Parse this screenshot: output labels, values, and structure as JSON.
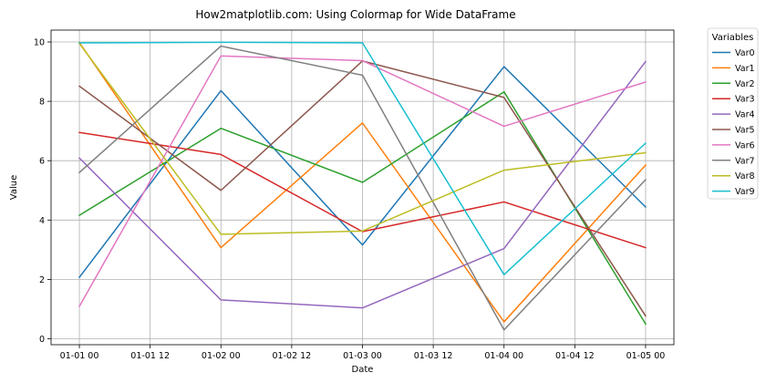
{
  "chart_data": {
    "type": "line",
    "title": "How2matplotlib.com: Using Colormap for Wide DataFrame",
    "xlabel": "Date",
    "ylabel": "Value",
    "x": [
      "01-01 00",
      "01-02 00",
      "01-03 00",
      "01-04 00",
      "01-05 00"
    ],
    "x_hours": [
      0,
      24,
      48,
      72,
      96
    ],
    "xticks": [
      "01-01 00",
      "01-01 12",
      "01-02 00",
      "01-02 12",
      "01-03 00",
      "01-03 12",
      "01-04 00",
      "01-04 12",
      "01-05 00"
    ],
    "xlim_hours": [
      -4.8,
      100.8
    ],
    "ylim": [
      -0.2,
      10.4
    ],
    "yticks": [
      0,
      2,
      4,
      6,
      8,
      10
    ],
    "grid": true,
    "legend": {
      "title": "Variables",
      "placement": "outside-right"
    },
    "series": [
      {
        "name": "Var0",
        "color": "#1f77b4",
        "values": [
          2.07,
          8.36,
          3.16,
          9.17,
          4.44
        ]
      },
      {
        "name": "Var1",
        "color": "#ff7f0e",
        "values": [
          9.98,
          3.07,
          7.27,
          0.57,
          5.85
        ]
      },
      {
        "name": "Var2",
        "color": "#2ca02c",
        "values": [
          4.16,
          7.09,
          5.27,
          8.32,
          0.5
        ]
      },
      {
        "name": "Var3",
        "color": "#d62728",
        "values": [
          6.95,
          6.21,
          3.61,
          4.61,
          3.07
        ]
      },
      {
        "name": "Var4",
        "color": "#9467bd",
        "values": [
          6.09,
          1.31,
          1.04,
          3.04,
          9.34
        ]
      },
      {
        "name": "Var5",
        "color": "#8c564b",
        "values": [
          8.51,
          5.0,
          9.36,
          8.13,
          0.77
        ]
      },
      {
        "name": "Var6",
        "color": "#e377c2",
        "values": [
          1.09,
          9.53,
          9.37,
          7.16,
          8.65
        ]
      },
      {
        "name": "Var7",
        "color": "#7f7f7f",
        "values": [
          5.6,
          9.86,
          8.88,
          0.3,
          5.36
        ]
      },
      {
        "name": "Var8",
        "color": "#bcbd22",
        "values": [
          9.95,
          3.52,
          3.63,
          5.68,
          6.27
        ]
      },
      {
        "name": "Var9",
        "color": "#17becf",
        "values": [
          9.97,
          9.99,
          9.97,
          2.16,
          6.59
        ]
      }
    ]
  }
}
